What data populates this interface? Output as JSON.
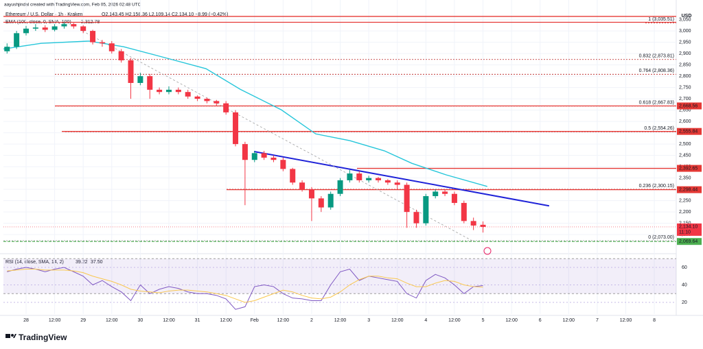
{
  "chart_data": {
    "type": "candlestick",
    "author": "aayushjindal created with TradingView.com, Feb 05, 2026 02:48 UTC",
    "title": "Ethereum / U.S. Dollar · 1h · Kraken",
    "ohlc_legend": "O2,143.45 H2,158.36 L2,109.14 C2,134.10 −8.99 (−0.42%)",
    "currency": "USD",
    "brand": "TradingView",
    "up_color": "#089981",
    "down_color": "#f23645",
    "grid": true,
    "x": [
      -8,
      -4,
      0,
      4,
      8,
      12,
      16,
      20,
      24,
      28,
      32,
      36,
      40,
      44,
      48,
      52,
      56,
      60,
      64,
      68,
      72,
      76,
      80,
      84,
      88,
      92,
      96,
      100,
      104,
      108,
      112,
      116,
      120,
      124,
      128,
      132,
      136,
      140,
      144,
      148,
      152,
      156,
      160,
      164,
      168,
      172,
      176,
      180,
      184,
      188,
      192
    ],
    "open": [
      2910,
      2930,
      2990,
      3010,
      3015,
      3005,
      3020,
      3030,
      3020,
      3000,
      2950,
      2945,
      2910,
      2870,
      2770,
      2800,
      2740,
      2730,
      2740,
      2730,
      2710,
      2700,
      2690,
      2680,
      2640,
      2500,
      2430,
      2460,
      2440,
      2430,
      2390,
      2330,
      2300,
      2260,
      2220,
      2280,
      2340,
      2370,
      2340,
      2350,
      2340,
      2330,
      2320,
      2200,
      2150,
      2270,
      2290,
      2280,
      2240,
      2160,
      2143.45
    ],
    "high": [
      2945,
      3000,
      3022,
      3030,
      3025,
      3030,
      3038,
      3035,
      3025,
      3005,
      2960,
      2955,
      2920,
      2880,
      2815,
      2810,
      2750,
      2755,
      2750,
      2740,
      2715,
      2705,
      2695,
      2690,
      2650,
      2510,
      2470,
      2470,
      2450,
      2440,
      2395,
      2340,
      2310,
      2270,
      2290,
      2350,
      2385,
      2380,
      2360,
      2355,
      2345,
      2340,
      2330,
      2210,
      2280,
      2300,
      2300,
      2290,
      2250,
      2175,
      2158.36
    ],
    "low": [
      2900,
      2920,
      2980,
      3000,
      2995,
      2998,
      3010,
      3010,
      2990,
      2940,
      2930,
      2900,
      2860,
      2700,
      2760,
      2700,
      2720,
      2720,
      2720,
      2700,
      2690,
      2680,
      2670,
      2630,
      2490,
      2230,
      2420,
      2430,
      2420,
      2380,
      2320,
      2290,
      2160,
      2200,
      2210,
      2270,
      2330,
      2330,
      2330,
      2330,
      2320,
      2300,
      2130,
      2130,
      2140,
      2260,
      2270,
      2230,
      2150,
      2120,
      2109.14
    ],
    "close": [
      2930,
      2990,
      3010,
      3015,
      3005,
      3020,
      3030,
      3020,
      3000,
      2950,
      2945,
      2910,
      2870,
      2770,
      2800,
      2740,
      2730,
      2740,
      2730,
      2710,
      2700,
      2690,
      2680,
      2640,
      2500,
      2430,
      2460,
      2440,
      2430,
      2390,
      2330,
      2300,
      2260,
      2220,
      2280,
      2340,
      2370,
      2340,
      2350,
      2340,
      2330,
      2320,
      2200,
      2150,
      2270,
      2290,
      2280,
      2240,
      2160,
      2140,
      2134.1
    ],
    "xlim": [
      -9.52,
      273.2
    ],
    "xticks": [
      {
        "value": 0,
        "label": "28"
      },
      {
        "value": 12,
        "label": "12:00"
      },
      {
        "value": 24,
        "label": "29"
      },
      {
        "value": 36,
        "label": "12:00"
      },
      {
        "value": 48,
        "label": "30"
      },
      {
        "value": 60,
        "label": "12:00"
      },
      {
        "value": 72,
        "label": "31"
      },
      {
        "value": 84,
        "label": "12:00"
      },
      {
        "value": 96,
        "label": "Feb"
      },
      {
        "value": 108,
        "label": "12:00"
      },
      {
        "value": 120,
        "label": "2"
      },
      {
        "value": 132,
        "label": "12:00"
      },
      {
        "value": 144,
        "label": "3"
      },
      {
        "value": 156,
        "label": "12:00"
      },
      {
        "value": 168,
        "label": "4"
      },
      {
        "value": 180,
        "label": "12:00"
      },
      {
        "value": 192,
        "label": "5"
      },
      {
        "value": 204,
        "label": "12:00"
      },
      {
        "value": 216,
        "label": "6"
      },
      {
        "value": 228,
        "label": "12:00"
      },
      {
        "value": 240,
        "label": "7"
      },
      {
        "value": 252,
        "label": "12:00"
      },
      {
        "value": 264,
        "label": "8"
      }
    ],
    "ylim": [
      2052,
      3082
    ],
    "yticks": [
      {
        "value": 2100,
        "label": "2,100"
      },
      {
        "value": 2150,
        "label": "2,150"
      },
      {
        "value": 2200,
        "label": "2,200"
      },
      {
        "value": 2250,
        "label": "2,250"
      },
      {
        "value": 2300,
        "label": "2,300"
      },
      {
        "value": 2350,
        "label": "2,350"
      },
      {
        "value": 2400,
        "label": "2,400"
      },
      {
        "value": 2450,
        "label": "2,450"
      },
      {
        "value": 2500,
        "label": "2,500"
      },
      {
        "value": 2550,
        "label": "2,550"
      },
      {
        "value": 2600,
        "label": "2,600"
      },
      {
        "value": 2650,
        "label": "2,650"
      },
      {
        "value": 2700,
        "label": "2,700"
      },
      {
        "value": 2750,
        "label": "2,750"
      },
      {
        "value": 2800,
        "label": "2,800"
      },
      {
        "value": 2850,
        "label": "2,850"
      },
      {
        "value": 2900,
        "label": "2,900"
      },
      {
        "value": 2950,
        "label": "2,950"
      },
      {
        "value": 3000,
        "label": "3,000"
      },
      {
        "value": 3050,
        "label": "3,050"
      }
    ],
    "ema": {
      "name": "EMA (100, close, 0, SMA, 100)",
      "value_label": "2,312.78",
      "color": "#26c6da",
      "x": [
        -9.5,
        6.3,
        26.5,
        41,
        55.4,
        75.6,
        90,
        107.3,
        121.7,
        136.1,
        150.6,
        162.1,
        176.5,
        193.8
      ],
      "values": [
        2920,
        2945,
        2955,
        2930,
        2890,
        2833,
        2742,
        2651,
        2545,
        2515,
        2470,
        2415,
        2364,
        2312.78
      ]
    },
    "fib": {
      "color": "#b71c1c",
      "levels": [
        {
          "value": 3035.51,
          "label": "1 (3,035.51)"
        },
        {
          "value": 2873.81,
          "label": "0.832 (2,873.81)"
        },
        {
          "value": 2808.36,
          "label": "0.764 (2,808.36)"
        },
        {
          "value": 2667.83,
          "label": "0.618 (2,667.83)"
        },
        {
          "value": 2554.26,
          "label": "0.5 (2,554.26)"
        },
        {
          "value": 2300.15,
          "label": "0.236 (2,300.15)"
        },
        {
          "value": 2073,
          "label": "0 (2,073.00)"
        }
      ]
    },
    "lines": {
      "color": "#e53935",
      "levels": [
        {
          "value": 3064
        },
        {
          "value": 3038
        },
        {
          "value": 2668.56
        },
        {
          "value": 2555.84
        },
        {
          "value": 2392.65
        },
        {
          "value": 2298.44
        }
      ]
    },
    "price_tags": [
      {
        "value": 2668.56,
        "label": "2,668.56"
      },
      {
        "value": 2555.84,
        "label": "2,555.84"
      },
      {
        "value": 2392.65,
        "label": "2,392.65"
      },
      {
        "value": 2298.44,
        "label": "2,298.44"
      }
    ],
    "current": {
      "value": 2134.1,
      "label": "2,134.10",
      "countdown": "11:10"
    },
    "support": {
      "value": 2069.64,
      "label": "2,069.64",
      "color": "#4caf50"
    },
    "trendlines": [
      {
        "color": "#1e22d8",
        "dash": false,
        "x": [
          95.8,
          219.8
        ],
        "values": [
          2467,
          2227
        ]
      },
      {
        "color": "#9e9e9e",
        "dash": true,
        "x": [
          23.7,
          188
        ],
        "values": [
          3000,
          2070
        ]
      }
    ],
    "rsi": {
      "name": "RSI (14, close, SMA, 14, 2)",
      "ylim": [
        6.7,
        69.4
      ],
      "yticks": [
        20,
        40,
        60
      ],
      "band": [
        30,
        70
      ],
      "band_color": "#7e57c2",
      "series": [
        {
          "color": "#7e57c2",
          "value_label": "39.22",
          "values": [
            55,
            58,
            60,
            58,
            55,
            58,
            60,
            55,
            50,
            40,
            45,
            38,
            32,
            22,
            40,
            30,
            35,
            38,
            36,
            32,
            30,
            30,
            28,
            24,
            12,
            15,
            38,
            40,
            38,
            30,
            25,
            24,
            22,
            22,
            40,
            55,
            58,
            45,
            50,
            48,
            46,
            44,
            30,
            25,
            45,
            52,
            48,
            40,
            30,
            38,
            39.22
          ]
        },
        {
          "color": "#f9c74f",
          "value_label": "37.50",
          "values": [
            56,
            57,
            58,
            58,
            57,
            57,
            57,
            56,
            54,
            50,
            47,
            44,
            40,
            35,
            33,
            32,
            31,
            33,
            34,
            34,
            33,
            32,
            30,
            28,
            24,
            20,
            22,
            26,
            30,
            34,
            32,
            28,
            25,
            24,
            26,
            32,
            40,
            46,
            50,
            50,
            48,
            47,
            42,
            38,
            38,
            42,
            45,
            44,
            40,
            38,
            37.5
          ]
        }
      ]
    }
  }
}
